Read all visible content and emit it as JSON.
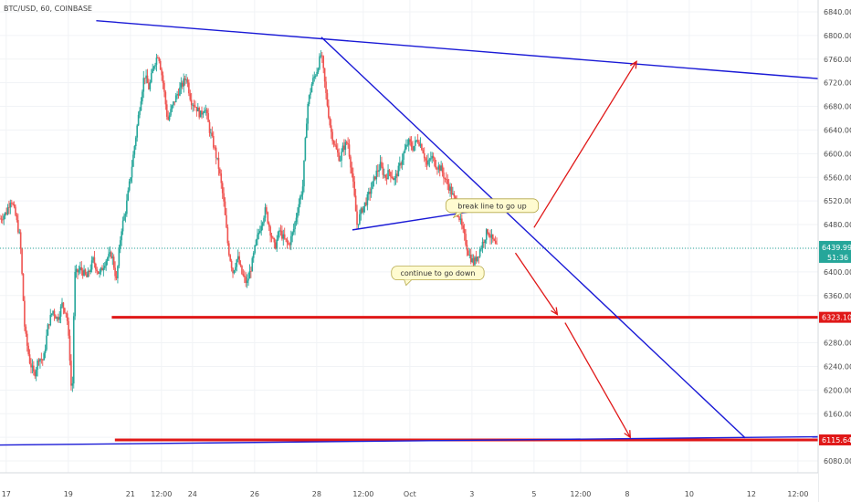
{
  "header": {
    "symbol_line": "BTC/USD, 60, COINBASE"
  },
  "colors": {
    "up": "#26a69a",
    "down": "#ef5350",
    "trend": "#1a1ad6",
    "support": "#e01818",
    "arrow": "#e01818",
    "last_price": "#26a69a",
    "axis_text": "#4a4a4a",
    "note_bg": "#fffbd0",
    "note_border": "#b5a84a"
  },
  "chart_data": {
    "type": "candlestick",
    "price_scale": {
      "range": [
        6060,
        6860
      ],
      "ticks": [
        6080,
        6120,
        6160,
        6200,
        6240,
        6280,
        6320,
        6360,
        6400,
        6440,
        6480,
        6520,
        6560,
        6600,
        6640,
        6680,
        6720,
        6760,
        6800,
        6840
      ],
      "tick_labels": [
        "6080.00",
        "6120.00",
        "6160.00",
        "6200.00",
        "6240.00",
        "6280.00",
        "6320.00",
        "6360.00",
        "6400.00",
        "6440.00",
        "6480.00",
        "6520.00",
        "6560.00",
        "6600.00",
        "6640.00",
        "6680.00",
        "6720.00",
        "6760.00",
        "6800.00",
        "6840.00"
      ],
      "decimals": 2
    },
    "time_axis": {
      "day_range": [
        16.8,
        43.15
      ],
      "ticks": [
        {
          "day": 17,
          "label": "17"
        },
        {
          "day": 19,
          "label": "19"
        },
        {
          "day": 21,
          "label": "21"
        },
        {
          "day": 22,
          "label": "12:00"
        },
        {
          "day": 23,
          "label": "24"
        },
        {
          "day": 25,
          "label": "26"
        },
        {
          "day": 27,
          "label": "28"
        },
        {
          "day": 28.5,
          "label": "12:00"
        },
        {
          "day": 30,
          "label": "Oct"
        },
        {
          "day": 32,
          "label": "3"
        },
        {
          "day": 34,
          "label": "5"
        },
        {
          "day": 35.5,
          "label": "12:00"
        },
        {
          "day": 37,
          "label": "8"
        },
        {
          "day": 39,
          "label": "10"
        },
        {
          "day": 41,
          "label": "12"
        },
        {
          "day": 42.5,
          "label": "12:00"
        }
      ]
    },
    "price_path": [
      [
        16.8,
        6490
      ],
      [
        17.0,
        6500
      ],
      [
        17.15,
        6525
      ],
      [
        17.3,
        6495
      ],
      [
        17.45,
        6455
      ],
      [
        17.6,
        6300
      ],
      [
        17.75,
        6250
      ],
      [
        17.9,
        6225
      ],
      [
        18.05,
        6255
      ],
      [
        18.2,
        6250
      ],
      [
        18.35,
        6310
      ],
      [
        18.5,
        6335
      ],
      [
        18.65,
        6320
      ],
      [
        18.8,
        6345
      ],
      [
        18.95,
        6330
      ],
      [
        19.05,
        6255
      ],
      [
        19.12,
        6175
      ],
      [
        19.2,
        6395
      ],
      [
        19.4,
        6405
      ],
      [
        19.6,
        6390
      ],
      [
        19.8,
        6420
      ],
      [
        20.0,
        6395
      ],
      [
        20.2,
        6420
      ],
      [
        20.4,
        6430
      ],
      [
        20.55,
        6385
      ],
      [
        20.7,
        6470
      ],
      [
        20.85,
        6505
      ],
      [
        21.0,
        6560
      ],
      [
        21.15,
        6620
      ],
      [
        21.3,
        6680
      ],
      [
        21.45,
        6735
      ],
      [
        21.6,
        6710
      ],
      [
        21.75,
        6750
      ],
      [
        21.9,
        6770
      ],
      [
        22.05,
        6720
      ],
      [
        22.2,
        6655
      ],
      [
        22.35,
        6680
      ],
      [
        22.5,
        6700
      ],
      [
        22.65,
        6715
      ],
      [
        22.8,
        6730
      ],
      [
        22.95,
        6690
      ],
      [
        23.1,
        6680
      ],
      [
        23.25,
        6665
      ],
      [
        23.4,
        6680
      ],
      [
        23.55,
        6640
      ],
      [
        23.7,
        6610
      ],
      [
        23.85,
        6575
      ],
      [
        24.0,
        6520
      ],
      [
        24.15,
        6440
      ],
      [
        24.3,
        6400
      ],
      [
        24.45,
        6425
      ],
      [
        24.6,
        6395
      ],
      [
        24.75,
        6380
      ],
      [
        24.9,
        6410
      ],
      [
        25.05,
        6450
      ],
      [
        25.2,
        6480
      ],
      [
        25.35,
        6505
      ],
      [
        25.5,
        6470
      ],
      [
        25.65,
        6440
      ],
      [
        25.8,
        6470
      ],
      [
        25.95,
        6455
      ],
      [
        26.1,
        6445
      ],
      [
        26.25,
        6470
      ],
      [
        26.4,
        6510
      ],
      [
        26.55,
        6545
      ],
      [
        26.7,
        6680
      ],
      [
        26.85,
        6720
      ],
      [
        27.0,
        6740
      ],
      [
        27.15,
        6770
      ],
      [
        27.3,
        6700
      ],
      [
        27.45,
        6640
      ],
      [
        27.6,
        6610
      ],
      [
        27.75,
        6590
      ],
      [
        27.85,
        6610
      ],
      [
        28.0,
        6620
      ],
      [
        28.15,
        6560
      ],
      [
        28.3,
        6480
      ],
      [
        28.45,
        6505
      ],
      [
        28.6,
        6520
      ],
      [
        28.75,
        6540
      ],
      [
        28.9,
        6565
      ],
      [
        29.05,
        6580
      ],
      [
        29.2,
        6560
      ],
      [
        29.35,
        6570
      ],
      [
        29.5,
        6555
      ],
      [
        29.65,
        6575
      ],
      [
        29.8,
        6600
      ],
      [
        29.95,
        6620
      ],
      [
        30.1,
        6610
      ],
      [
        30.25,
        6625
      ],
      [
        30.4,
        6610
      ],
      [
        30.55,
        6580
      ],
      [
        30.7,
        6595
      ],
      [
        30.85,
        6580
      ],
      [
        31.0,
        6575
      ],
      [
        31.15,
        6555
      ],
      [
        31.3,
        6540
      ],
      [
        31.45,
        6520
      ],
      [
        31.6,
        6490
      ],
      [
        31.75,
        6460
      ],
      [
        31.9,
        6430
      ],
      [
        32.05,
        6415
      ],
      [
        32.2,
        6430
      ],
      [
        32.35,
        6450
      ],
      [
        32.5,
        6470
      ],
      [
        32.65,
        6455
      ],
      [
        32.8,
        6440
      ]
    ],
    "last_price": {
      "value": 6439.99,
      "label": "6439.99",
      "countdown": "51:36"
    },
    "support_levels": [
      {
        "value": 6323.1,
        "label": "6323.10",
        "from_day": 20.4
      },
      {
        "value": 6115.64,
        "label": "6115.64",
        "from_day": 20.5
      }
    ],
    "trendlines": [
      {
        "name": "upper-resistance",
        "points": [
          [
            19.9,
            6825
          ],
          [
            43.15,
            6727
          ]
        ]
      },
      {
        "name": "falling-line",
        "points": [
          [
            27.15,
            6797
          ],
          [
            40.8,
            6119
          ]
        ]
      },
      {
        "name": "lower-support",
        "points": [
          [
            16.8,
            6107
          ],
          [
            43.15,
            6121
          ]
        ]
      },
      {
        "name": "break-line",
        "points": [
          [
            28.15,
            6471
          ],
          [
            33.2,
            6512
          ]
        ]
      }
    ],
    "arrows": [
      {
        "name": "arrow-up",
        "from": [
          34.0,
          6475
        ],
        "to": [
          37.3,
          6756
        ]
      },
      {
        "name": "arrow-down-1",
        "from": [
          33.4,
          6432
        ],
        "to": [
          34.75,
          6328
        ]
      },
      {
        "name": "arrow-down-2",
        "from": [
          35.0,
          6314
        ],
        "to": [
          37.1,
          6120
        ]
      }
    ],
    "annotations": [
      {
        "name": "note-break-line",
        "text": "break line to go up",
        "day": 32.65,
        "price": 6512,
        "pointer": "left-down"
      },
      {
        "name": "note-continue-down",
        "text": "continue to go down",
        "day": 30.9,
        "price": 6398,
        "pointer": "down"
      }
    ]
  }
}
